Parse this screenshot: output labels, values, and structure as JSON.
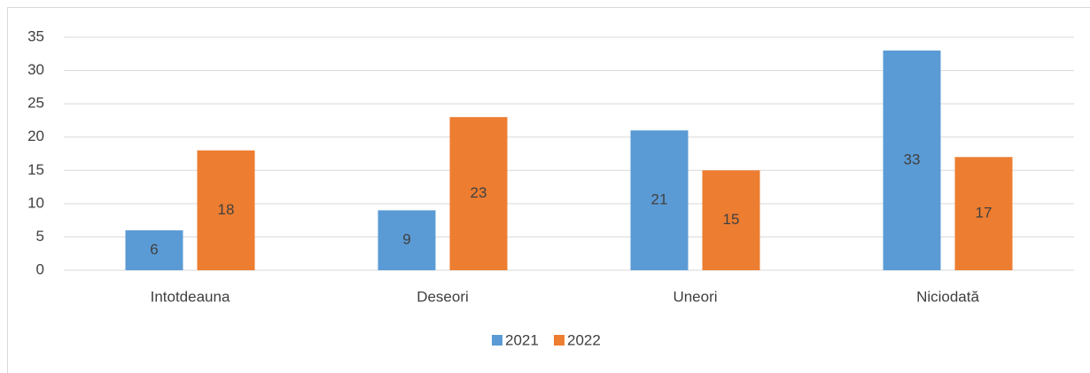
{
  "chart_data": {
    "type": "bar",
    "categories": [
      "Intotdeauna",
      "Deseori",
      "Uneori",
      "Niciodată"
    ],
    "series": [
      {
        "name": "2021",
        "color": "#5b9bd5",
        "values": [
          6,
          9,
          21,
          33
        ]
      },
      {
        "name": "2022",
        "color": "#ed7d31",
        "values": [
          18,
          23,
          15,
          17
        ]
      }
    ],
    "ylim": [
      0,
      35
    ],
    "yticks": [
      0,
      5,
      10,
      15,
      20,
      25,
      30,
      35
    ],
    "grid": true,
    "legend": "bottom"
  }
}
